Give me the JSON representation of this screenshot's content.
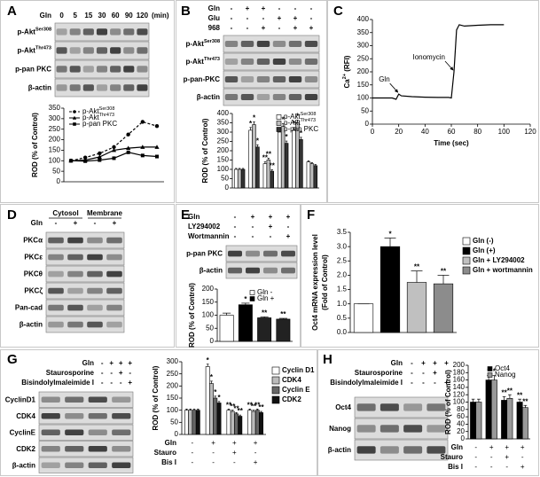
{
  "panel_labels": [
    "A",
    "B",
    "C",
    "D",
    "E",
    "F",
    "G",
    "H"
  ],
  "blots": [
    {
      "header": [
        {
          "name": "Gln",
          "signs": [
            "0",
            "5",
            "15",
            "30",
            "60",
            "90",
            "120"
          ]
        }
      ],
      "unit": "(min)",
      "rows": [
        {
          "text": "p-Akt",
          "sup": "Ser308"
        },
        {
          "text": "p-Akt",
          "sup": "Thr473"
        },
        "p-pan PKC",
        "β-actin"
      ]
    },
    {
      "header": [
        {
          "name": "Gln",
          "signs": [
            "-",
            "+",
            "+",
            "-",
            "-",
            "-"
          ]
        },
        {
          "name": "Glu",
          "signs": [
            "-",
            "-",
            "-",
            "+",
            "+",
            "-"
          ]
        },
        {
          "name": "968",
          "signs": [
            "-",
            "-",
            "+",
            "-",
            "+",
            "+"
          ]
        }
      ],
      "rows": [
        {
          "text": "p-Akt",
          "sup": "Ser308"
        },
        {
          "text": "p-Akt",
          "sup": "Thr473"
        },
        "p-pan-PKC",
        "β-actin"
      ]
    },
    {
      "groups": [
        "Cytosol",
        "Membrane"
      ],
      "header": [
        {
          "name": "Gln",
          "signs": [
            "-",
            "+",
            "-",
            "+"
          ]
        }
      ],
      "rows": [
        "PKCα",
        "PKCε",
        "PKCθ",
        "PKCζ",
        "Pan-cad",
        "β-actin"
      ]
    },
    {
      "header": [
        {
          "name": "Gln",
          "signs": [
            "-",
            "+",
            "+",
            "+"
          ]
        },
        {
          "name": "LY294002",
          "signs": [
            "-",
            "-",
            "+",
            "-"
          ]
        },
        {
          "name": "Wortmannin",
          "signs": [
            "-",
            "-",
            "-",
            "+"
          ]
        }
      ],
      "rows": [
        "p-pan PKC",
        "β-actin"
      ]
    },
    {
      "header": [
        {
          "name": "Gln",
          "signs": [
            "-",
            "+",
            "+",
            "+"
          ]
        },
        {
          "name": "Staurosporine",
          "signs": [
            "-",
            "-",
            "+",
            "-"
          ]
        },
        {
          "name": "Bisindolylmaleimide I",
          "signs": [
            "-",
            "-",
            "-",
            "+"
          ]
        }
      ],
      "rows": [
        "CyclinD1",
        "CDK4",
        "CyclinE",
        "CDK2",
        "β-actin"
      ]
    },
    {
      "header": [
        {
          "name": "Gln",
          "signs": [
            "-",
            "+",
            "+",
            "+"
          ]
        },
        {
          "name": "Staurosporine",
          "signs": [
            "-",
            "-",
            "+",
            "-"
          ]
        },
        {
          "name": "Bisindolylmaleimide I",
          "signs": [
            "-",
            "-",
            "-",
            "+"
          ]
        }
      ],
      "rows": [
        "Oct4",
        "Nanog",
        "β-actin"
      ]
    }
  ],
  "chart_data": [
    {
      "type": "line",
      "ylabel": "ROD (% of Control)",
      "ylim": [
        0,
        350
      ],
      "yticks": [
        0,
        50,
        100,
        150,
        200,
        250,
        300,
        350
      ],
      "legend": "top-left",
      "series": [
        {
          "name": {
            "text": "p-Akt",
            "sup": "Ser308"
          },
          "color": "#000000",
          "dash": true,
          "marker": "circle",
          "values": [
            100,
            115,
            135,
            165,
            225,
            285,
            265
          ]
        },
        {
          "name": {
            "text": "p-Akt",
            "sup": "Thr473"
          },
          "color": "#000000",
          "marker": "triangle",
          "values": [
            100,
            103,
            118,
            150,
            160,
            165,
            165
          ]
        },
        {
          "name": "p-pan PKC",
          "color": "#000000",
          "marker": "square",
          "values": [
            100,
            98,
            103,
            112,
            140,
            125,
            120
          ]
        }
      ]
    },
    {
      "type": "bar",
      "ylabel": "ROD (% of Control)",
      "ylim": [
        0,
        400
      ],
      "yticks": [
        0,
        50,
        100,
        150,
        200,
        250,
        300,
        350,
        400
      ],
      "legend": "top-right",
      "series": [
        {
          "name": {
            "text": "p-Akt",
            "sup": "Ser308"
          },
          "color": "#ffffff",
          "values": [
            100,
            310,
            130,
            300,
            310,
            140
          ],
          "errors": [
            5,
            15,
            10,
            15,
            15,
            6
          ],
          "sig": [
            null,
            "*",
            "**",
            "*",
            "*",
            null
          ]
        },
        {
          "name": {
            "text": "p-Akt",
            "sup": "Thr473"
          },
          "color": "#bdbdbd",
          "values": [
            100,
            340,
            150,
            330,
            350,
            130
          ],
          "errors": [
            5,
            15,
            10,
            15,
            15,
            6
          ],
          "sig": [
            null,
            "*",
            "**",
            "*",
            "*",
            null
          ]
        },
        {
          "name": "p-pan PKC",
          "color": "#333333",
          "values": [
            100,
            220,
            90,
            240,
            260,
            120
          ],
          "errors": [
            5,
            12,
            8,
            12,
            12,
            6
          ],
          "sig": [
            null,
            "*",
            "**",
            "*",
            "*",
            null
          ]
        }
      ]
    },
    {
      "type": "line",
      "ylabel": {
        "text": "Ca",
        "sup": "2+",
        "after": " (RFI)"
      },
      "xlabel": "Time (sec)",
      "xlim": [
        0,
        120
      ],
      "xticks": [
        0,
        20,
        40,
        60,
        80,
        100,
        120
      ],
      "ylim": [
        0,
        400
      ],
      "yticks": [
        0,
        50,
        100,
        150,
        200,
        250,
        300,
        350,
        400
      ],
      "x": [
        0,
        15,
        18,
        20,
        22,
        30,
        40,
        50,
        58,
        60,
        62,
        64,
        66,
        70,
        80,
        90,
        100
      ],
      "series": [
        {
          "color": "#000000",
          "values": [
            100,
            100,
            95,
            115,
            108,
            105,
            103,
            102,
            102,
            100,
            200,
            360,
            380,
            375,
            378,
            380,
            380
          ]
        }
      ],
      "annotations": [
        {
          "text": "Gln",
          "x": 20,
          "y": 115
        },
        {
          "text": "Ionomycin",
          "x": 62,
          "y": 200
        }
      ]
    },
    {
      "type": "bar",
      "ylabel": "ROD (% of Control)",
      "ylim": [
        0,
        200
      ],
      "yticks": [
        0,
        50,
        100,
        150,
        200
      ],
      "legend": "top-right",
      "legend_entries": [
        {
          "name": "Gln -",
          "color": "#ffffff"
        },
        {
          "name": "Gln +",
          "color": "#000000"
        }
      ],
      "series": [
        {
          "colors": [
            "#ffffff",
            "#000000",
            "#222222",
            "#222222"
          ],
          "values": [
            100,
            140,
            90,
            85
          ],
          "errors": [
            8,
            6,
            4,
            3
          ],
          "sig": [
            null,
            "*",
            "**",
            "**"
          ]
        }
      ]
    },
    {
      "type": "bar",
      "ylabel": [
        "Oct4 mRNA expression level",
        "(Fold of Control)"
      ],
      "ylim": [
        0,
        3.5
      ],
      "yticks": [
        {
          "value": 0,
          "label": "0.0"
        },
        0.5,
        {
          "value": 1,
          "label": "1.0"
        },
        1.5,
        {
          "value": 2,
          "label": "2.0"
        },
        2.5,
        {
          "value": 3,
          "label": "3.0"
        },
        3.5
      ],
      "legend": "right",
      "legend_entries": [
        {
          "name": "Gln (-)",
          "color": "#ffffff"
        },
        {
          "name": "Gln (+)",
          "color": "#000000"
        },
        {
          "name": "Gln + LY294002",
          "color": "#c0c0c0"
        },
        {
          "name": "Gln + wortmannin",
          "color": "#8c8c8c"
        }
      ],
      "series": [
        {
          "colors": [
            "#ffffff",
            "#000000",
            "#c0c0c0",
            "#8c8c8c"
          ],
          "values": [
            1.0,
            3.0,
            1.75,
            1.7
          ],
          "errors": [
            0,
            0.3,
            0.4,
            0.3
          ],
          "sig": [
            null,
            "*",
            "**",
            "**"
          ]
        }
      ]
    },
    {
      "type": "bar",
      "ylabel": "ROD (% of Control)",
      "ylim": [
        0,
        300
      ],
      "yticks": [
        0,
        50,
        100,
        150,
        200,
        250,
        300
      ],
      "legend": "right",
      "series": [
        {
          "name": "Cyclin D1",
          "color": "#ffffff",
          "values": [
            100,
            280,
            100,
            100
          ],
          "errors": [
            5,
            10,
            5,
            5
          ],
          "sig": [
            null,
            "*",
            "**",
            "**"
          ]
        },
        {
          "name": "CDK4",
          "color": "#bbbbbb",
          "values": [
            100,
            210,
            95,
            95
          ],
          "errors": [
            5,
            10,
            5,
            5
          ],
          "sig": [
            null,
            "*",
            "**",
            "**"
          ]
        },
        {
          "name": "Cyclin E",
          "color": "#666666",
          "values": [
            100,
            150,
            85,
            100
          ],
          "errors": [
            5,
            8,
            5,
            5
          ],
          "sig": [
            null,
            "*",
            "**",
            "**"
          ]
        },
        {
          "name": "CDK2",
          "color": "#111111",
          "values": [
            100,
            130,
            75,
            90
          ],
          "errors": [
            5,
            6,
            5,
            5
          ],
          "sig": [
            null,
            "*",
            "**",
            "**"
          ]
        }
      ],
      "conditions": [
        {
          "name": "Gln",
          "signs": [
            "-",
            "+",
            "+",
            "+"
          ]
        },
        {
          "name": "Stauro",
          "signs": [
            "-",
            "-",
            "+",
            "-"
          ]
        },
        {
          "name": "Bis I",
          "signs": [
            "-",
            "-",
            "-",
            "+"
          ]
        }
      ]
    },
    {
      "type": "bar",
      "ylabel": "ROD (% of Control)",
      "ylim": [
        0,
        200
      ],
      "yticks": [
        0,
        20,
        40,
        60,
        80,
        100,
        120,
        140,
        160,
        180,
        200
      ],
      "legend": "top-right",
      "series": [
        {
          "name": "Oct4",
          "color": "#000000",
          "values": [
            100,
            160,
            105,
            100
          ],
          "errors": [
            8,
            12,
            10,
            8
          ],
          "sig": [
            null,
            "*",
            "**",
            "**"
          ]
        },
        {
          "name": "Nanog",
          "color": "#999999",
          "values": [
            100,
            160,
            110,
            85
          ],
          "errors": [
            8,
            12,
            10,
            6
          ],
          "sig": [
            null,
            "*",
            "**",
            "**"
          ]
        }
      ],
      "conditions": [
        {
          "name": "Gln",
          "signs": [
            "-",
            "+",
            "+",
            "+"
          ]
        },
        {
          "name": "Stauro",
          "signs": [
            "-",
            "-",
            "+",
            "-"
          ]
        },
        {
          "name": "Bis I",
          "signs": [
            "-",
            "-",
            "-",
            "+"
          ]
        }
      ]
    }
  ]
}
